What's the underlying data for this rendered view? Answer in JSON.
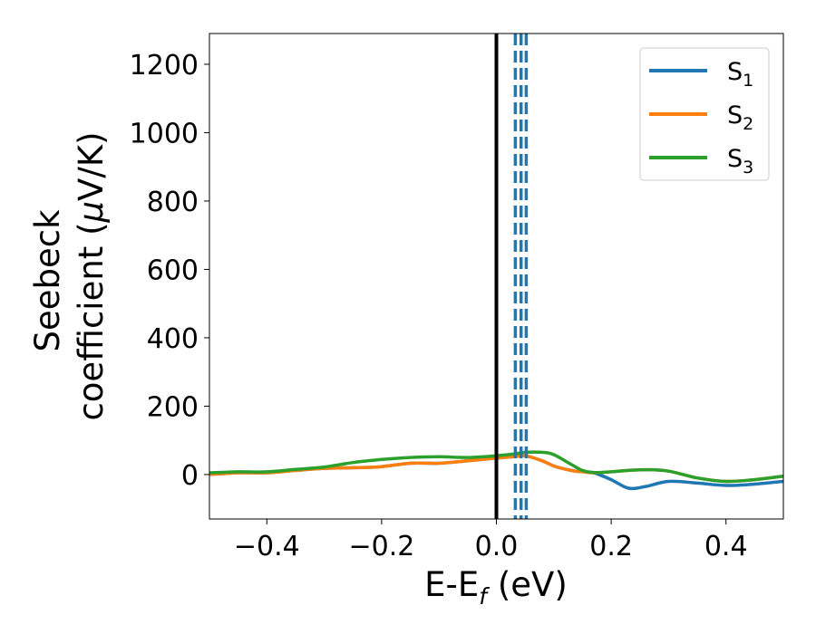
{
  "colors": {
    "s1": "#1f77b4",
    "s2": "#ff7f0e",
    "s3": "#2ca02c",
    "axis": "#000000",
    "legend_border": "#cccccc"
  },
  "chart_data": {
    "type": "line",
    "xlabel": "E-E_f (eV)",
    "xlabel_main": "E-E",
    "xlabel_sub": "f",
    "xlabel_unit": " (eV)",
    "ylabel_line1": "Seebeck",
    "ylabel_line2_pre": "coefficient  (",
    "ylabel_line2_mu": "μ",
    "ylabel_line2_post": "V/K)",
    "xlim": [
      -0.5,
      0.5
    ],
    "ylim": [
      -130,
      1290
    ],
    "grid": false,
    "legend_position": "top-right",
    "x_ticks": [
      -0.4,
      -0.2,
      0.0,
      0.2,
      0.4
    ],
    "x_tick_labels": [
      "−0.4",
      "−0.2",
      "0.0",
      "0.2",
      "0.4"
    ],
    "y_ticks": [
      0,
      200,
      400,
      600,
      800,
      1000,
      1200
    ],
    "y_tick_labels": [
      "0",
      "200",
      "400",
      "600",
      "800",
      "1000",
      "1200"
    ],
    "vertical_lines": [
      {
        "x": 0.0,
        "style": "solid",
        "color": "#000000"
      },
      {
        "x": 0.033,
        "style": "dashed",
        "color": "#1f77b4"
      },
      {
        "x": 0.043,
        "style": "dashed",
        "color": "#1f77b4"
      },
      {
        "x": 0.052,
        "style": "dashed",
        "color": "#1f77b4"
      }
    ],
    "series": [
      {
        "name": "S_1",
        "label_main": "S",
        "label_sub": "1",
        "color": "#1f77b4",
        "x": [
          -0.5,
          -0.45,
          -0.4,
          -0.35,
          -0.3,
          -0.25,
          -0.2,
          -0.15,
          -0.1,
          -0.05,
          0.0,
          0.03,
          0.05,
          0.08,
          0.1,
          0.13,
          0.15,
          0.17,
          0.2,
          0.23,
          0.26,
          0.3,
          0.35,
          0.4,
          0.45,
          0.5
        ],
        "y": [
          0,
          5,
          5,
          12,
          18,
          20,
          23,
          33,
          33,
          40,
          48,
          52,
          55,
          40,
          25,
          12,
          8,
          5,
          -15,
          -40,
          -35,
          -20,
          -25,
          -32,
          -28,
          -20
        ]
      },
      {
        "name": "S_2",
        "label_main": "S",
        "label_sub": "2",
        "color": "#ff7f0e",
        "x": [
          -0.5,
          -0.45,
          -0.4,
          -0.35,
          -0.3,
          -0.25,
          -0.2,
          -0.15,
          -0.1,
          -0.05,
          0.0,
          0.03,
          0.05,
          0.08,
          0.1,
          0.13,
          0.15,
          0.17,
          0.2,
          0.23,
          0.26,
          0.3,
          0.35,
          0.4,
          0.45,
          0.5
        ],
        "y": [
          0,
          5,
          5,
          12,
          18,
          20,
          23,
          33,
          33,
          40,
          48,
          52,
          55,
          40,
          25,
          12,
          8,
          5,
          8,
          12,
          14,
          10,
          -10,
          -20,
          -15,
          -5
        ]
      },
      {
        "name": "S_3",
        "label_main": "S",
        "label_sub": "3",
        "color": "#2ca02c",
        "x": [
          -0.5,
          -0.45,
          -0.4,
          -0.35,
          -0.3,
          -0.25,
          -0.2,
          -0.15,
          -0.1,
          -0.05,
          0.0,
          0.03,
          0.05,
          0.08,
          0.1,
          0.13,
          0.15,
          0.17,
          0.2,
          0.23,
          0.26,
          0.3,
          0.35,
          0.4,
          0.45,
          0.5
        ],
        "y": [
          5,
          8,
          8,
          15,
          22,
          35,
          44,
          50,
          52,
          50,
          55,
          60,
          65,
          65,
          58,
          30,
          12,
          6,
          8,
          12,
          14,
          10,
          -10,
          -20,
          -15,
          -5
        ]
      }
    ]
  }
}
